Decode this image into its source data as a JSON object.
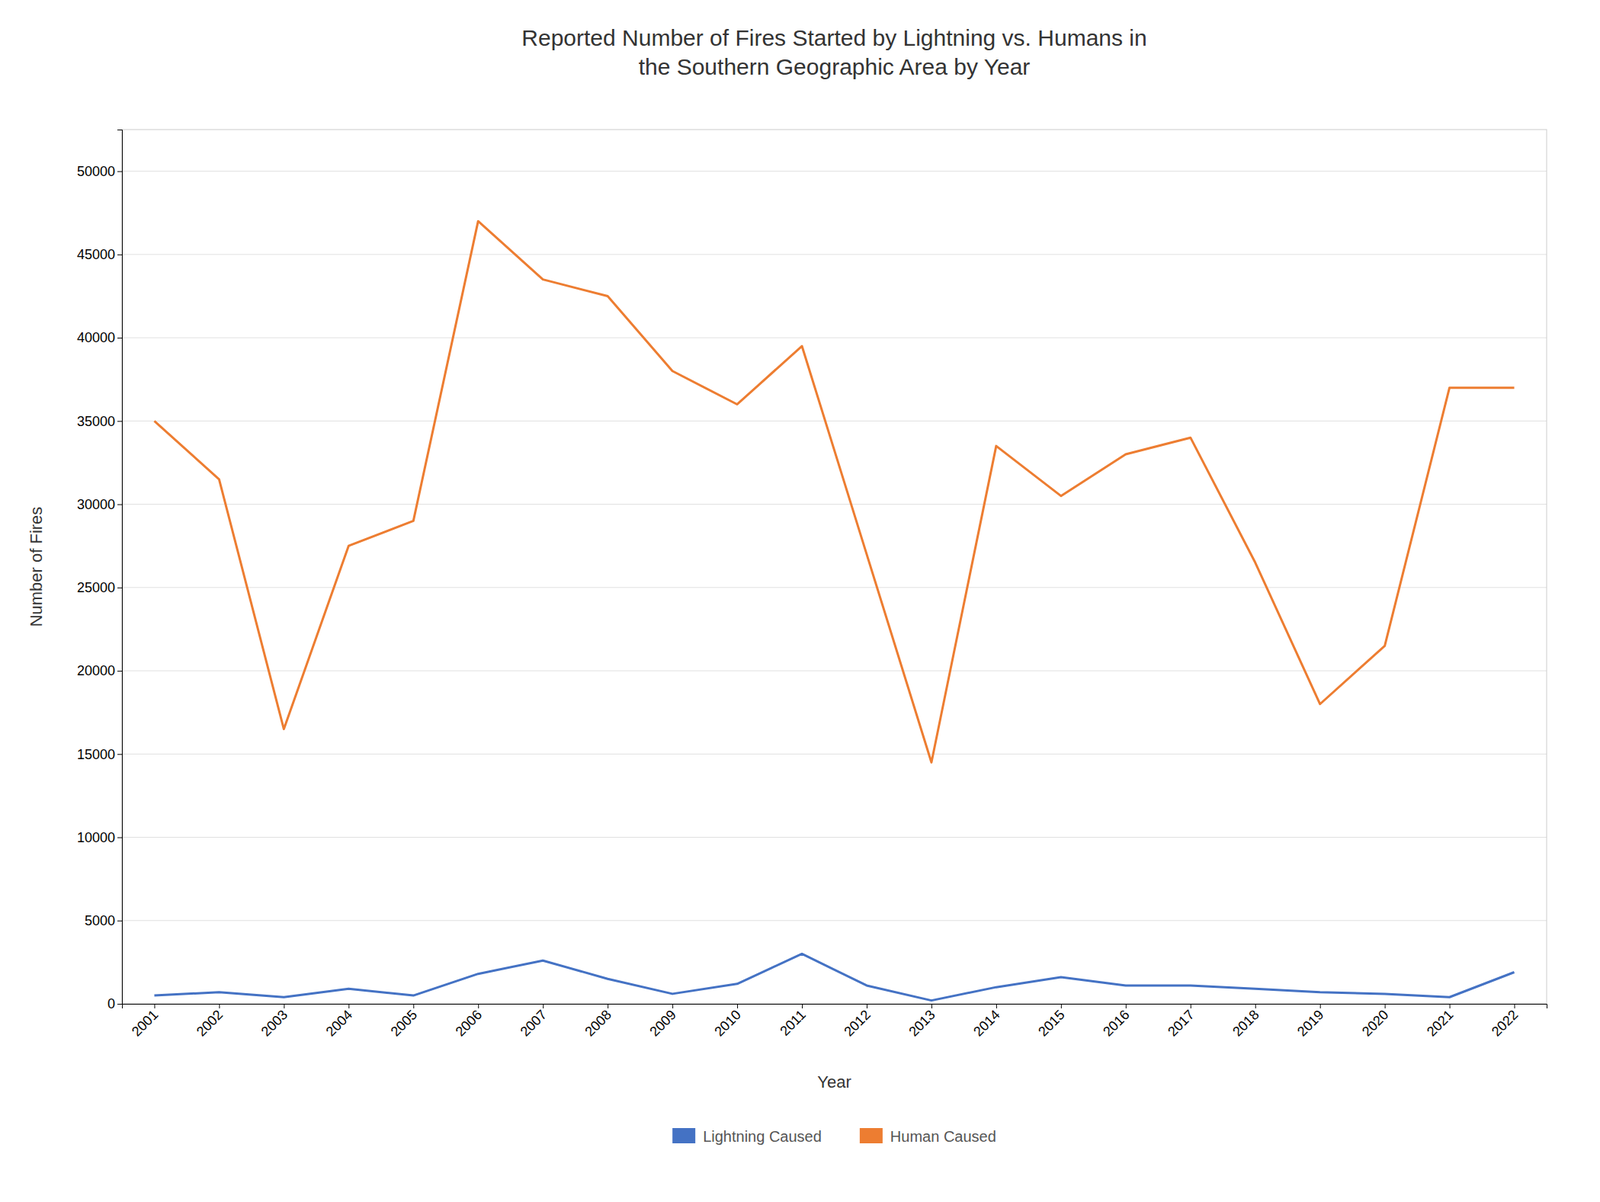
{
  "chart_data": {
    "type": "line",
    "title": "Reported Number of Fires Started by Lightning vs. Humans in\nthe Southern Geographic Area by Year",
    "x_label": "Year",
    "y_label": "Number of Fires",
    "x": [
      2001,
      2002,
      2003,
      2004,
      2005,
      2006,
      2007,
      2008,
      2009,
      2010,
      2011,
      2012,
      2013,
      2014,
      2015,
      2016,
      2017,
      2018,
      2019,
      2020,
      2021,
      2022
    ],
    "series": [
      {
        "name": "Lightning Caused",
        "color": "#4472c4",
        "values": [
          500,
          700,
          400,
          900,
          500,
          1800,
          2600,
          1500,
          600,
          1200,
          3000,
          1100,
          200,
          1000,
          1600,
          1100,
          1100,
          900,
          700,
          600,
          400,
          1900
        ]
      },
      {
        "name": "Human Caused",
        "color": "#ed7d31",
        "values": [
          35000,
          31500,
          16500,
          27500,
          29000,
          47000,
          43500,
          42500,
          38000,
          36000,
          39500,
          27000,
          14500,
          33500,
          30500,
          33000,
          34000,
          26500,
          18000,
          21500,
          37000,
          37000
        ]
      }
    ],
    "xlim": [
      2000.5,
      2022.5
    ],
    "xticks": [
      2001,
      2002,
      2003,
      2004,
      2005,
      2006,
      2007,
      2008,
      2009,
      2010,
      2011,
      2012,
      2013,
      2014,
      2015,
      2016,
      2017,
      2018,
      2019,
      2020,
      2021,
      2022
    ],
    "ylim": [
      0,
      52500
    ],
    "yticks": [
      0,
      5000,
      10000,
      15000,
      20000,
      25000,
      30000,
      35000,
      40000,
      45000,
      50000
    ],
    "grid": true,
    "legend": "bottom"
  }
}
